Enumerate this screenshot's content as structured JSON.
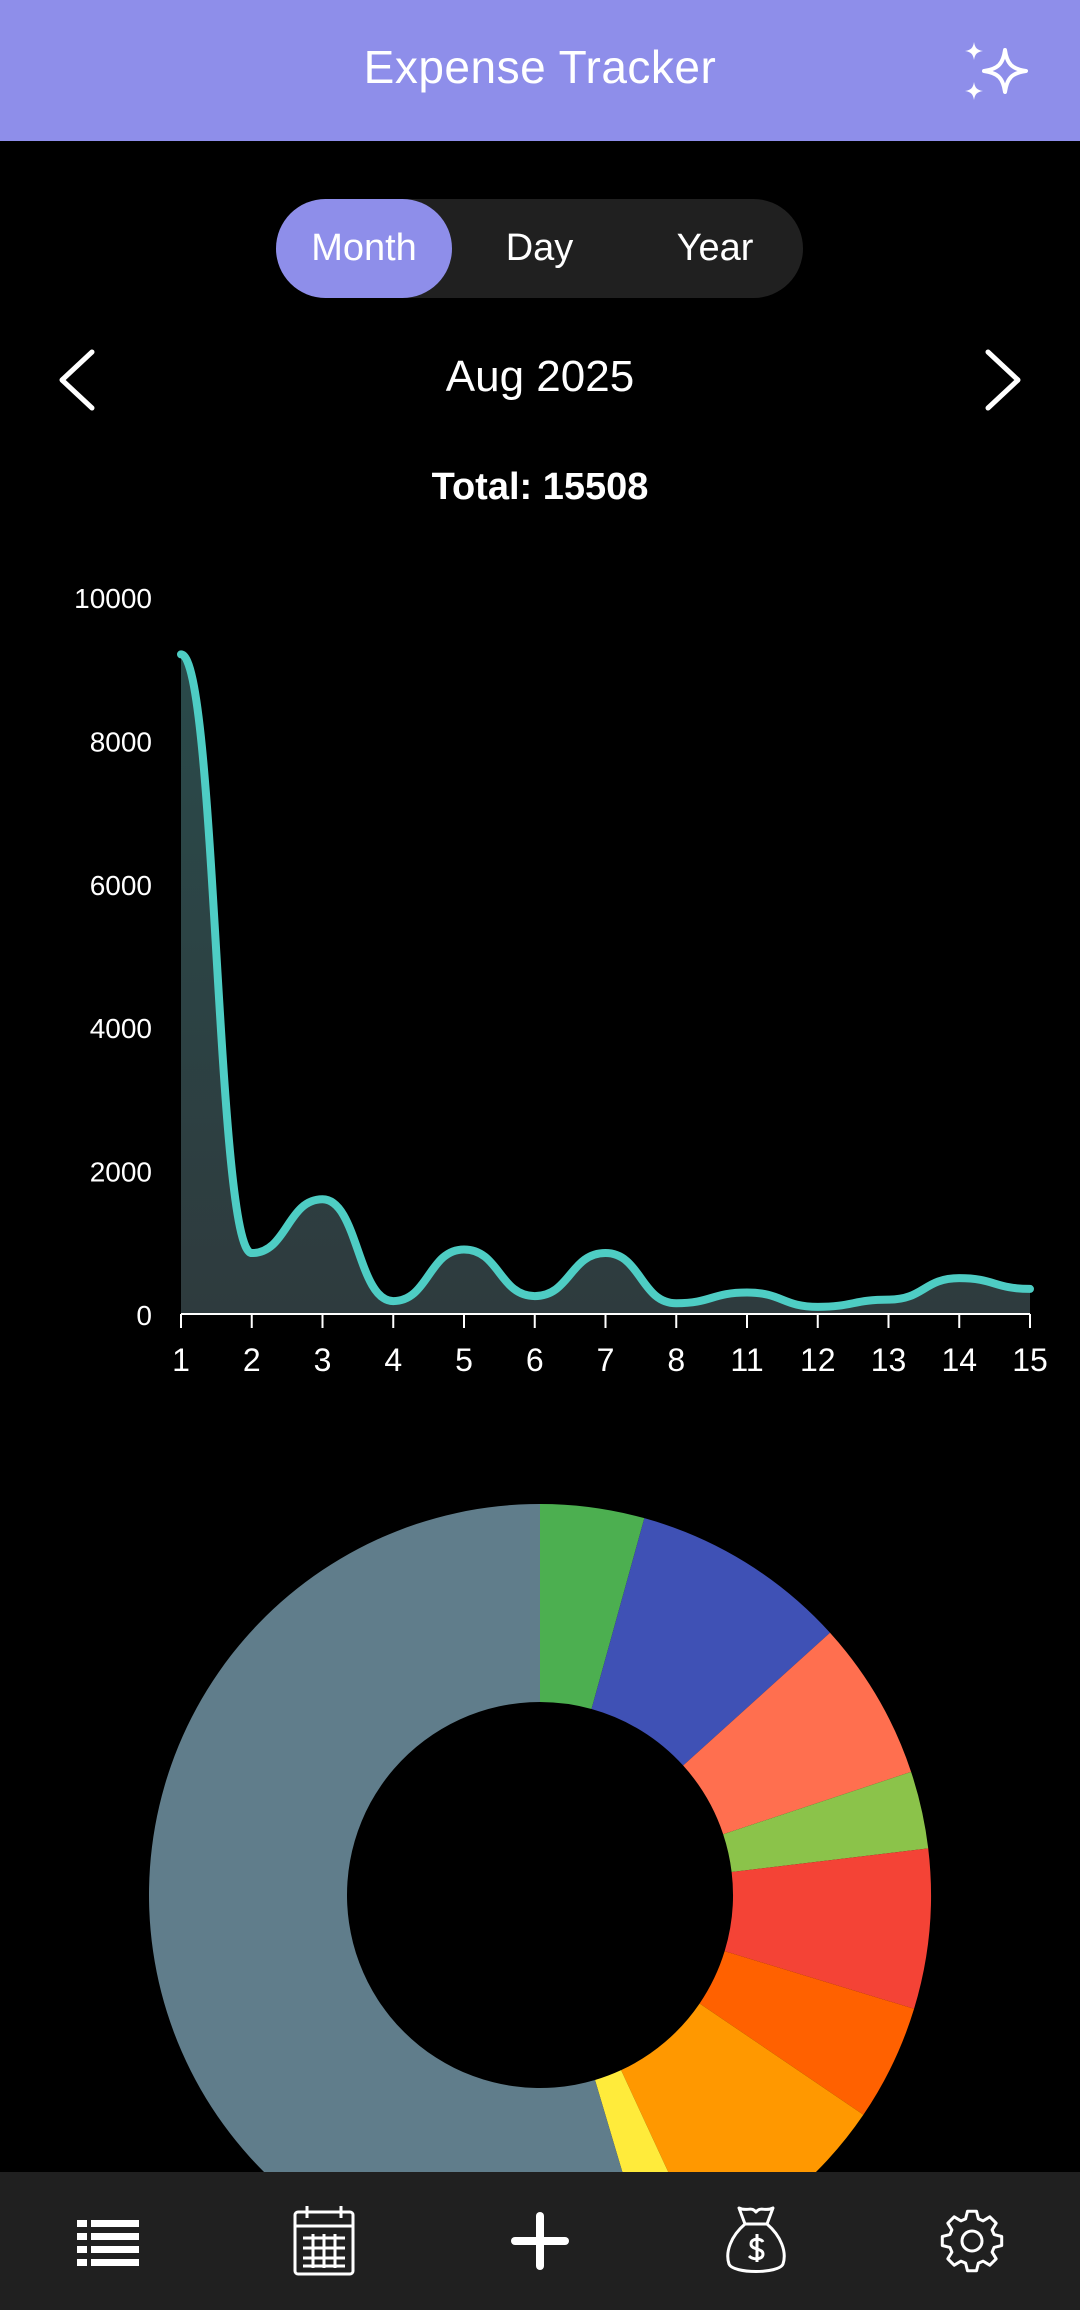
{
  "app": {
    "title": "Expense Tracker",
    "sparkle_icon": "sparkles-icon"
  },
  "colors": {
    "accent": "#8e8eea",
    "line": "#4ecdc4",
    "area": "#2e3b3e",
    "background": "#000000",
    "surface": "#202020"
  },
  "view_toggle": {
    "options": [
      "Month",
      "Day",
      "Year"
    ],
    "selected": "Month"
  },
  "period": {
    "label": "Aug 2025",
    "prev_icon": "chevron-left-icon",
    "next_icon": "chevron-right-icon"
  },
  "summary": {
    "total_text": "Total: 15508"
  },
  "chart_data": [
    {
      "type": "area",
      "x": [
        "1",
        "2",
        "3",
        "4",
        "5",
        "6",
        "7",
        "8",
        "11",
        "12",
        "13",
        "14",
        "15"
      ],
      "values": [
        9200,
        850,
        1600,
        180,
        900,
        250,
        850,
        150,
        300,
        100,
        200,
        500,
        350
      ],
      "yticks": [
        "0",
        "2000",
        "4000",
        "6000",
        "8000",
        "10000"
      ],
      "ylim": [
        0,
        10000
      ],
      "grid": false,
      "title": "",
      "xlabel": "",
      "ylabel": ""
    },
    {
      "type": "pie",
      "donut": true,
      "values": [
        4.3,
        9.0,
        6.6,
        3.2,
        6.6,
        4.8,
        8.6,
        2.3,
        54.6
      ],
      "colors": [
        "#4caf50",
        "#3f51b5",
        "#ff6f4f",
        "#8bc34a",
        "#f44336",
        "#ff6100",
        "#ff9800",
        "#ffeb3b",
        "#607d8b"
      ]
    }
  ],
  "bottom_nav": {
    "items": [
      {
        "icon": "list-icon"
      },
      {
        "icon": "calendar-icon"
      },
      {
        "icon": "add-icon"
      },
      {
        "icon": "money-bag-icon"
      },
      {
        "icon": "settings-icon"
      }
    ]
  }
}
